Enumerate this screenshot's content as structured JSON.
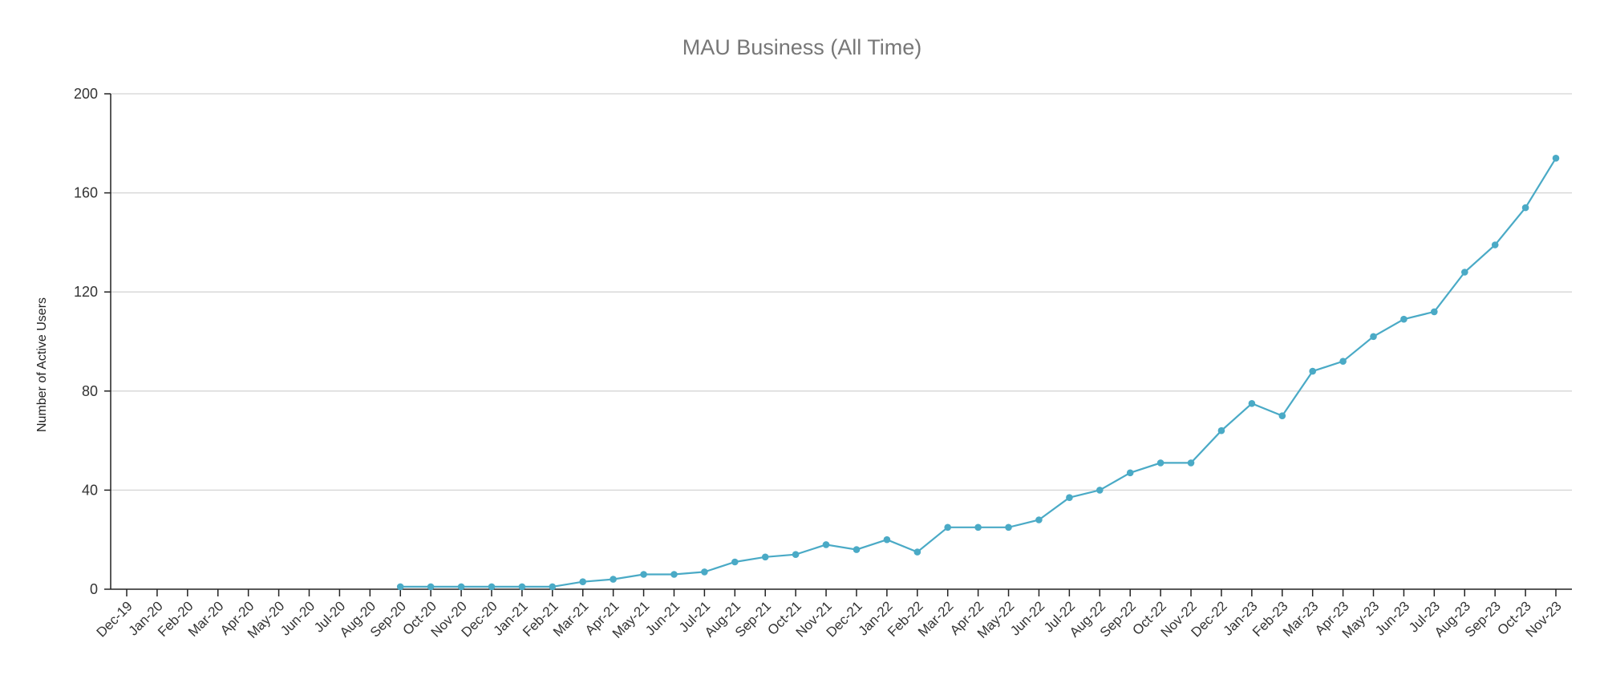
{
  "chart_data": {
    "type": "line",
    "title": "MAU Business (All Time)",
    "xlabel": "",
    "ylabel": "Number of Active Users",
    "ylim": [
      0,
      200
    ],
    "yticks": [
      0,
      40,
      80,
      120,
      160,
      200
    ],
    "grid": true,
    "color": "#4aaac6",
    "categories": [
      "Dec-19",
      "Jan-20",
      "Feb-20",
      "Mar-20",
      "Apr-20",
      "May-20",
      "Jun-20",
      "Jul-20",
      "Aug-20",
      "Sep-20",
      "Oct-20",
      "Nov-20",
      "Dec-20",
      "Jan-21",
      "Feb-21",
      "Mar-21",
      "Apr-21",
      "May-21",
      "Jun-21",
      "Jul-21",
      "Aug-21",
      "Sep-21",
      "Oct-21",
      "Nov-21",
      "Dec-21",
      "Jan-22",
      "Feb-22",
      "Mar-22",
      "Apr-22",
      "May-22",
      "Jun-22",
      "Jul-22",
      "Aug-22",
      "Sep-22",
      "Oct-22",
      "Nov-22",
      "Dec-22",
      "Jan-23",
      "Feb-23",
      "Mar-23",
      "Apr-23",
      "May-23",
      "Jun-23",
      "Jul-23",
      "Aug-23",
      "Sep-23",
      "Oct-23",
      "Nov-23"
    ],
    "series": [
      {
        "values": [
          null,
          null,
          null,
          null,
          null,
          null,
          null,
          null,
          null,
          1,
          1,
          1,
          1,
          1,
          1,
          3,
          4,
          6,
          6,
          7,
          11,
          13,
          14,
          18,
          16,
          20,
          15,
          25,
          25,
          25,
          28,
          37,
          40,
          47,
          51,
          51,
          64,
          75,
          70,
          88,
          92,
          102,
          109,
          112,
          128,
          139,
          154,
          174
        ]
      }
    ]
  }
}
